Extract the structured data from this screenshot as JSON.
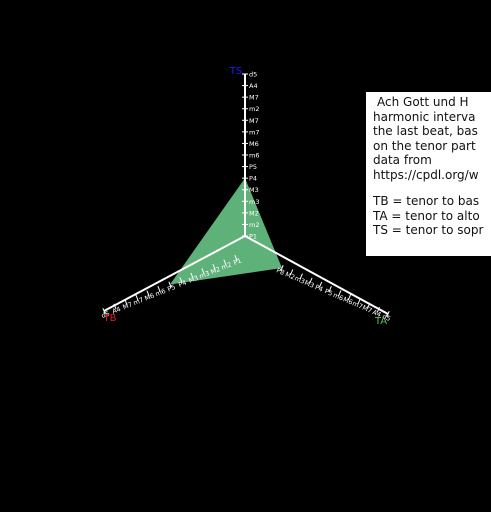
{
  "chart_data": {
    "type": "radar",
    "axes": [
      {
        "name": "TS",
        "color": "#1a1aff",
        "value": "P4"
      },
      {
        "name": "TB",
        "color": "#e0201c",
        "value": "P5"
      },
      {
        "name": "TA",
        "color": "#5fbf5f",
        "value": "P8"
      }
    ],
    "ticks": {
      "TS": [
        "P1",
        "m2",
        "M2",
        "m3",
        "M3",
        "P4",
        "P5",
        "m6",
        "M6",
        "m7",
        "M7",
        "m2",
        "M7",
        "A4",
        "d5"
      ],
      "TB": [
        "P1",
        "m2",
        "M2",
        "m3",
        "M3",
        "P4",
        "P5",
        "m6",
        "M6",
        "m7",
        "M7",
        "A4",
        "d5"
      ],
      "TA": [
        "P8",
        "M2",
        "m3",
        "M3",
        "P4",
        "P5",
        "m6",
        "M6",
        "m7",
        "M7",
        "A4",
        "d5"
      ]
    },
    "fill_color": "#5fb17a"
  },
  "info": {
    "lines": [
      "Ach Gott und H",
      "harmonic interva",
      "the last beat, bas",
      "on the tenor part",
      "data from",
      "https://cpdl.org/w"
    ],
    "legend": [
      "TB = tenor to bas",
      "TA = tenor to alto",
      "TS = tenor to sopr"
    ]
  }
}
